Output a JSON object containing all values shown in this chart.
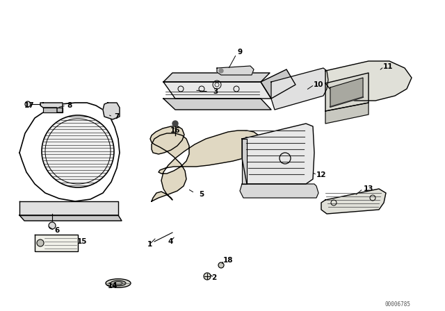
{
  "bg_color": "#ffffff",
  "catalog_number": "00006785",
  "line_color": "#000000",
  "text_color": "#000000",
  "fill_gray": "#e8e8e8",
  "fill_dark": "#c8c8c8",
  "fill_panel": "#d4c8a8"
}
